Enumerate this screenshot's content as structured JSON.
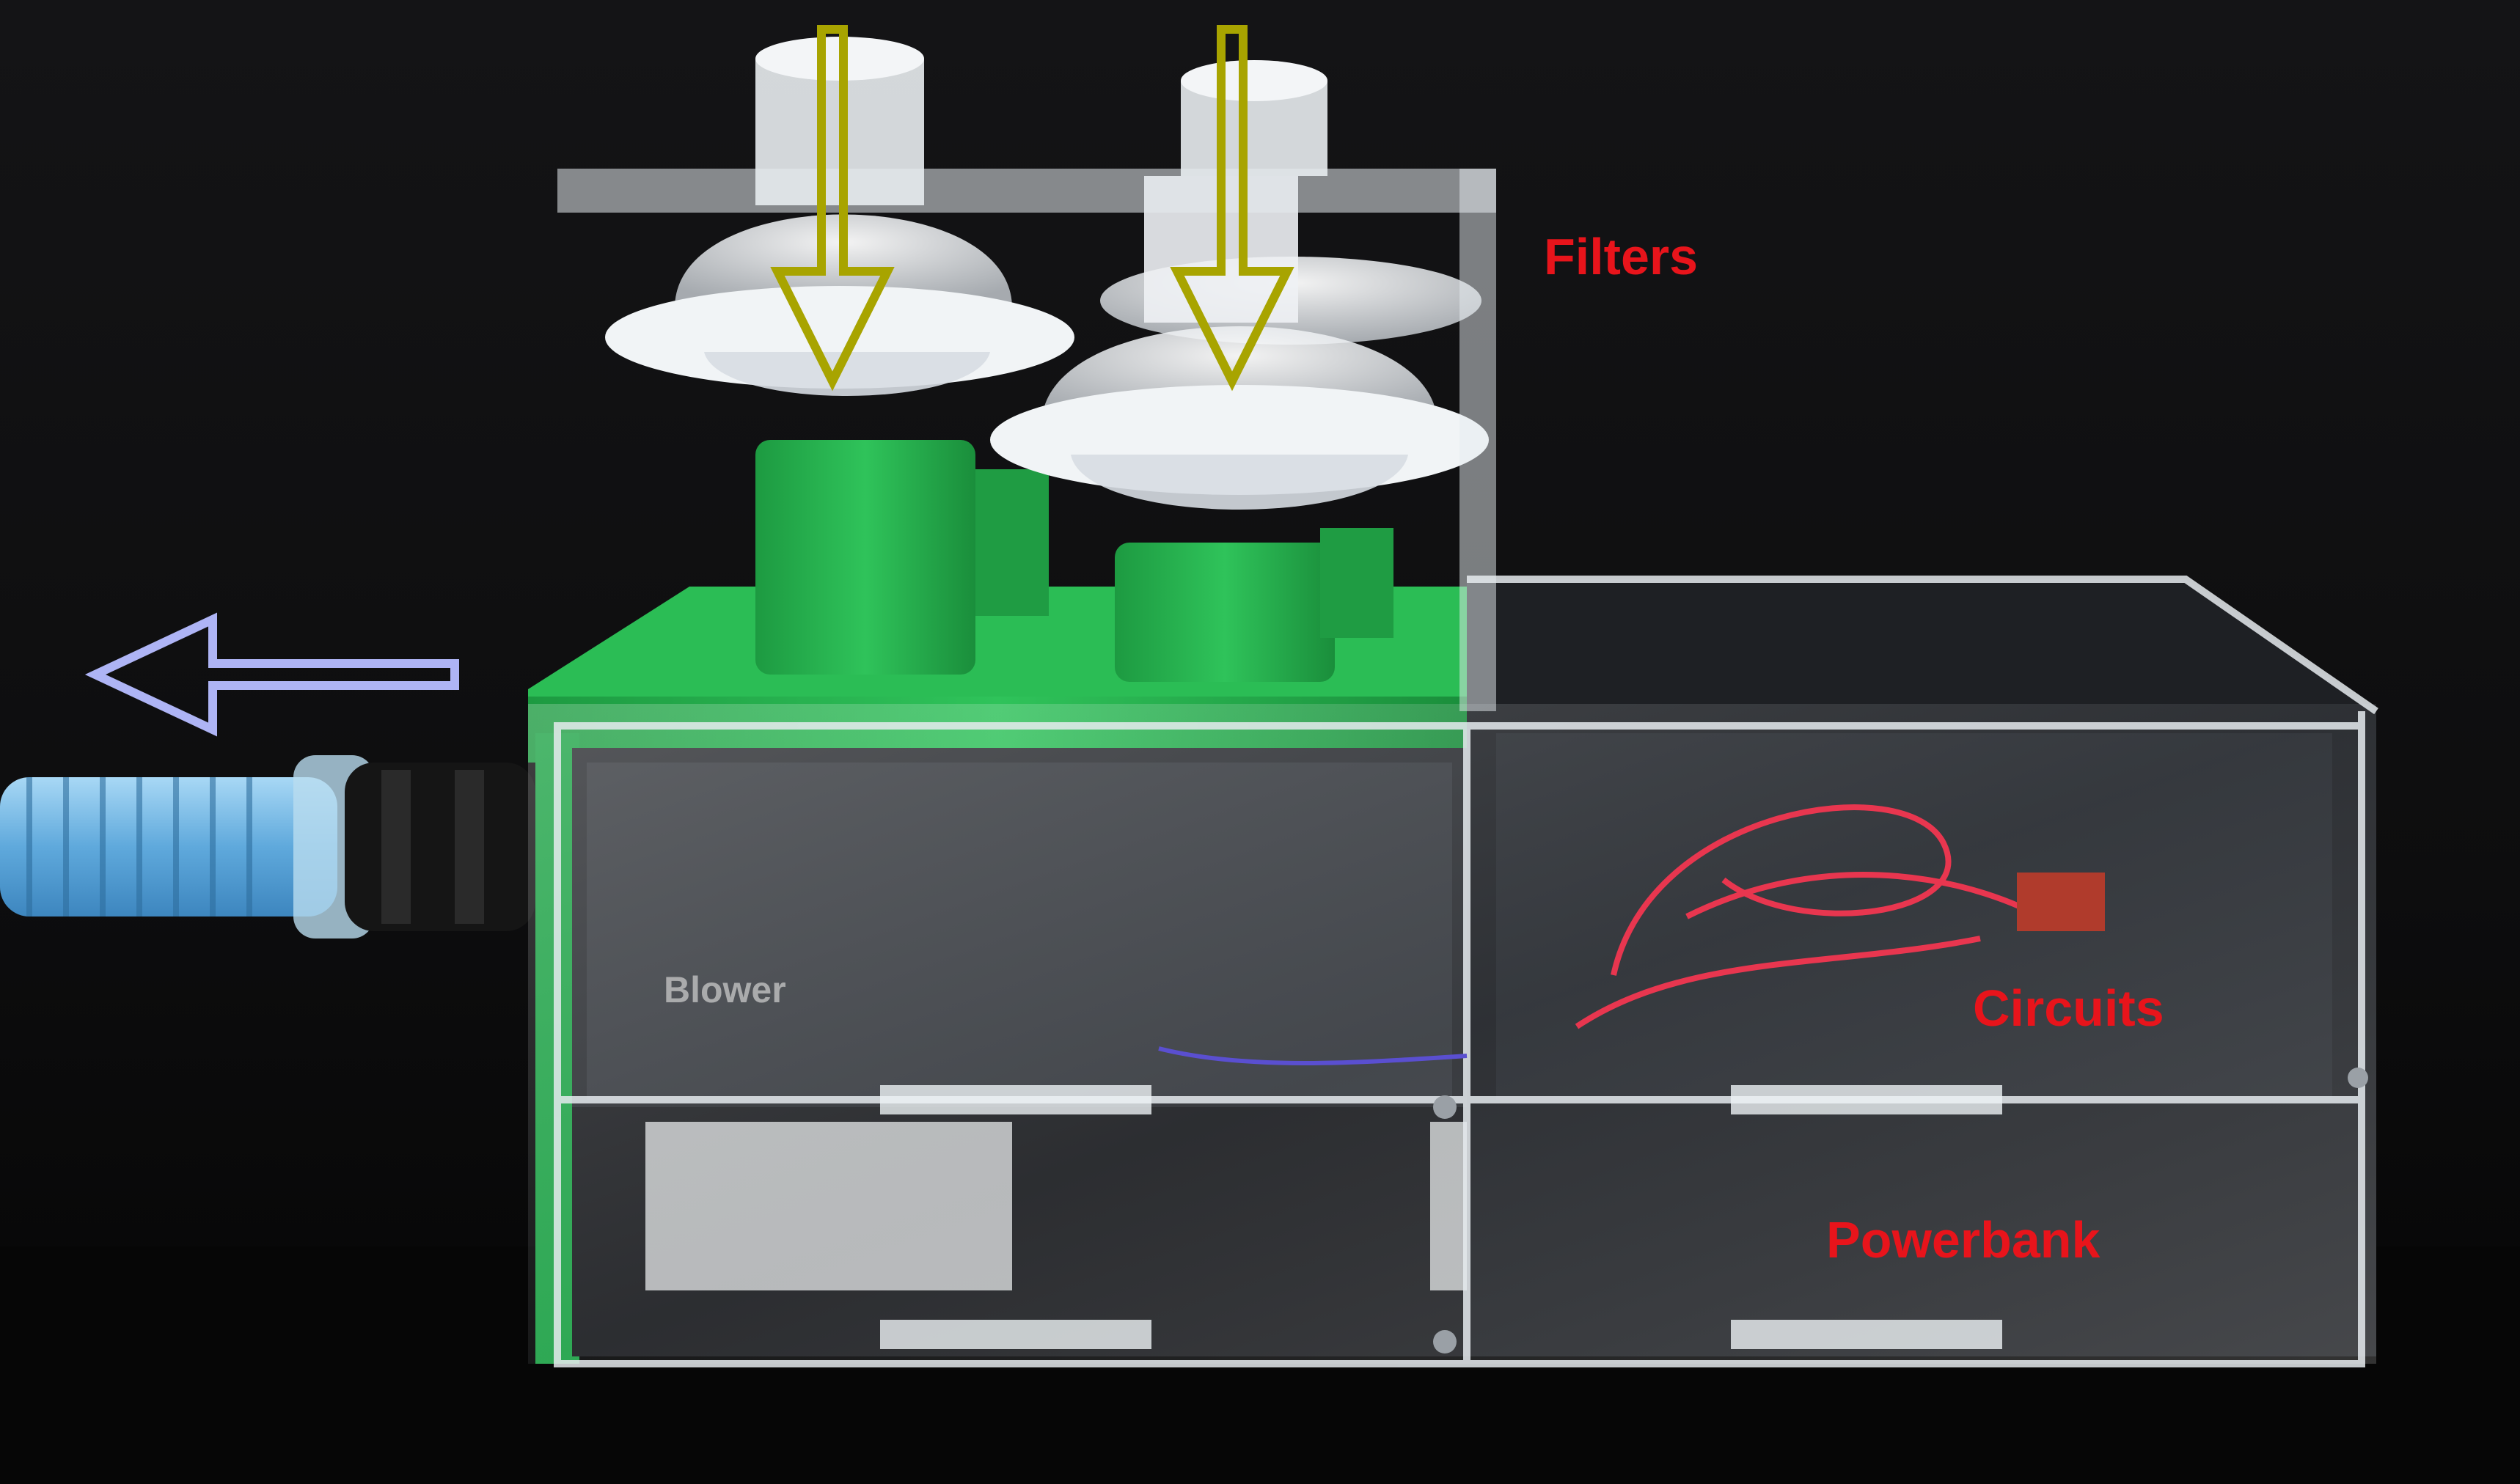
{
  "photo": {
    "subject": "device",
    "labels": {
      "filters": "Filters",
      "circuits": "Circuits",
      "powerbank": "Powerbank",
      "blower": "Blower"
    },
    "arrows": {
      "intake_arrow_color": "#a8a400",
      "outlet_arrow_color": "#aeb4f5"
    },
    "colors": {
      "background": "#0b0b0c",
      "label_red": "#e8141b",
      "green_part": "#22b14c",
      "hose_blue": "#7fbfe8",
      "acrylic": "#d9dde2"
    }
  }
}
